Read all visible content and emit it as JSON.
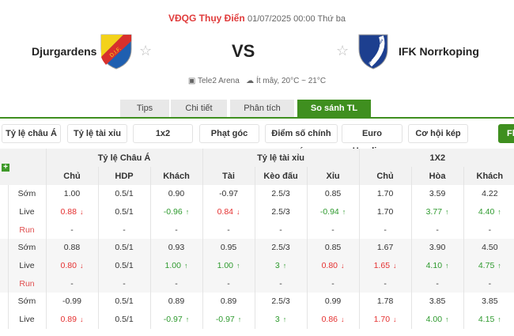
{
  "match": {
    "league": "VĐQG Thụy Điển",
    "datetime": "01/07/2025 00:00 Thứ ba",
    "home": "Djurgardens",
    "away": "IFK Norrkoping",
    "vs": "VS",
    "home_logo_text": "D.I.F.",
    "away_logo_text": "IFK NORRKÖPING",
    "venue": "Tele2 Arena",
    "weather": "Ít mây, 20°C ~ 21°C"
  },
  "tabs": [
    {
      "label": "Tips"
    },
    {
      "label": "Chi tiết"
    },
    {
      "label": "Phân tích"
    },
    {
      "label": "So sánh TL",
      "active": true
    }
  ],
  "filters": [
    "Tỷ lệ châu Á",
    "Tỷ lệ tài xỉu",
    "1x2",
    "Phạt góc",
    "Điểm số chính xác",
    "Euro Handicap",
    "Cơ hội kép",
    "Fl"
  ],
  "table": {
    "groups": [
      "Tỷ lệ Châu Á",
      "Tỷ lệ tài xỉu",
      "1X2"
    ],
    "columns": [
      "Chủ",
      "HDP",
      "Khách",
      "Tài",
      "Kèo đấu",
      "Xỉu",
      "Chủ",
      "Hòa",
      "Khách"
    ],
    "rows": [
      {
        "label": "Sớm",
        "cells": [
          [
            "1.00",
            ""
          ],
          [
            "0.5/1",
            ""
          ],
          [
            "0.90",
            ""
          ],
          [
            "-0.97",
            ""
          ],
          [
            "2.5/3",
            ""
          ],
          [
            "0.85",
            ""
          ],
          [
            "1.70",
            ""
          ],
          [
            "3.59",
            ""
          ],
          [
            "4.22",
            ""
          ]
        ]
      },
      {
        "label": "Live",
        "cells": [
          [
            "0.88",
            "down"
          ],
          [
            "0.5/1",
            ""
          ],
          [
            "-0.96",
            "up"
          ],
          [
            "0.84",
            "down"
          ],
          [
            "2.5/3",
            ""
          ],
          [
            "-0.94",
            "up"
          ],
          [
            "1.70",
            ""
          ],
          [
            "3.77",
            "up"
          ],
          [
            "4.40",
            "up"
          ]
        ]
      },
      {
        "label": "Run",
        "cells": [
          [
            "-",
            ""
          ],
          [
            "-",
            ""
          ],
          [
            "-",
            ""
          ],
          [
            "-",
            ""
          ],
          [
            "-",
            ""
          ],
          [
            "-",
            ""
          ],
          [
            "-",
            ""
          ],
          [
            "-",
            ""
          ],
          [
            "-",
            ""
          ]
        ]
      },
      {
        "label": "Sớm",
        "cells": [
          [
            "0.88",
            ""
          ],
          [
            "0.5/1",
            ""
          ],
          [
            "0.93",
            ""
          ],
          [
            "0.95",
            ""
          ],
          [
            "2.5/3",
            ""
          ],
          [
            "0.85",
            ""
          ],
          [
            "1.67",
            ""
          ],
          [
            "3.90",
            ""
          ],
          [
            "4.50",
            ""
          ]
        ]
      },
      {
        "label": "Live",
        "cells": [
          [
            "0.80",
            "down"
          ],
          [
            "0.5/1",
            ""
          ],
          [
            "1.00",
            "up"
          ],
          [
            "1.00",
            "up"
          ],
          [
            "3",
            "up"
          ],
          [
            "0.80",
            "down"
          ],
          [
            "1.65",
            "down"
          ],
          [
            "4.10",
            "up"
          ],
          [
            "4.75",
            "up"
          ]
        ]
      },
      {
        "label": "Run",
        "cells": [
          [
            "-",
            ""
          ],
          [
            "-",
            ""
          ],
          [
            "-",
            ""
          ],
          [
            "-",
            ""
          ],
          [
            "-",
            ""
          ],
          [
            "-",
            ""
          ],
          [
            "-",
            ""
          ],
          [
            "-",
            ""
          ],
          [
            "-",
            ""
          ]
        ]
      },
      {
        "label": "Sớm",
        "cells": [
          [
            "-0.99",
            ""
          ],
          [
            "0.5/1",
            ""
          ],
          [
            "0.89",
            ""
          ],
          [
            "0.89",
            ""
          ],
          [
            "2.5/3",
            ""
          ],
          [
            "0.99",
            ""
          ],
          [
            "1.78",
            ""
          ],
          [
            "3.85",
            ""
          ],
          [
            "3.85",
            ""
          ]
        ]
      },
      {
        "label": "Live",
        "cells": [
          [
            "0.89",
            "down"
          ],
          [
            "0.5/1",
            ""
          ],
          [
            "-0.97",
            "up"
          ],
          [
            "-0.97",
            "up"
          ],
          [
            "3",
            "up"
          ],
          [
            "0.86",
            "down"
          ],
          [
            "1.70",
            "down"
          ],
          [
            "4.00",
            "up"
          ],
          [
            "4.15",
            "up"
          ]
        ]
      }
    ]
  },
  "colors": {
    "accent": "#3f8f1f",
    "down": "#e53030",
    "up": "#2e9a2e",
    "league": "#e03b3b"
  }
}
